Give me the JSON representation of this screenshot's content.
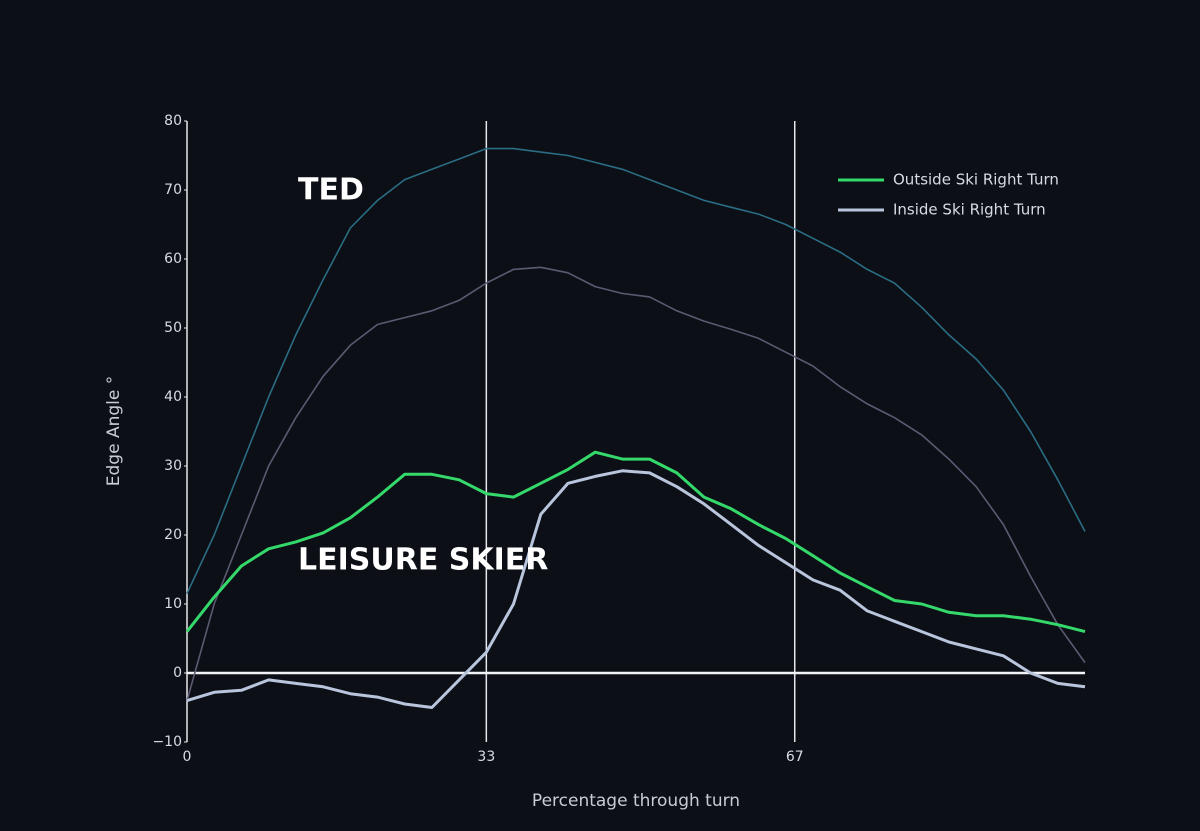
{
  "chart_data": {
    "type": "line",
    "x_label": "Percentage through turn",
    "y_label": "Edge Angle °",
    "annotations": [
      "TED",
      "LEISURE SKIER"
    ],
    "x": [
      0,
      3,
      6,
      9,
      12,
      15,
      18,
      21,
      24,
      27,
      30,
      33,
      36,
      39,
      42,
      45,
      48,
      51,
      54,
      57,
      60,
      63,
      66,
      69,
      72,
      75,
      78,
      81,
      84,
      87,
      90,
      93,
      96,
      99
    ],
    "xlim": [
      0,
      99
    ],
    "xticks": [
      0,
      33,
      67
    ],
    "ylim": [
      -10,
      80
    ],
    "yticks": [
      {
        "value": -10,
        "label": "−10"
      },
      0,
      10,
      20,
      30,
      40,
      50,
      60,
      70,
      80
    ],
    "grid": "x",
    "zeroline": true,
    "legend": "top-right",
    "series": [
      {
        "color": "#2a6d84",
        "values": [
          11.5,
          20,
          30,
          40,
          49,
          57,
          64.5,
          68.5,
          71.5,
          73,
          74.5,
          76,
          76,
          75.5,
          75,
          74,
          73,
          71.5,
          70,
          68.5,
          67.5,
          66.5,
          65,
          63,
          61,
          58.5,
          56.5,
          53,
          49,
          45.5,
          41,
          35,
          28,
          20.5
        ]
      },
      {
        "color": "#5b5a72",
        "values": [
          -4,
          10,
          20,
          30,
          37,
          43,
          47.5,
          50.5,
          51.5,
          52.5,
          54,
          56.5,
          58.5,
          58.8,
          58,
          56,
          55,
          54.5,
          52.5,
          51,
          49.8,
          48.5,
          46.5,
          44.5,
          41.5,
          39,
          37,
          34.5,
          31,
          27,
          21.5,
          14,
          7,
          1.5
        ]
      },
      {
        "name": "Outside Ski Right Turn",
        "color": "#35d86a",
        "values": [
          6,
          11,
          15.5,
          18,
          19,
          20.3,
          22.5,
          25.5,
          28.8,
          28.8,
          28,
          26,
          25.5,
          27.5,
          29.5,
          32,
          31,
          31,
          29,
          25.5,
          23.8,
          21.5,
          19.5,
          17,
          14.5,
          12.5,
          10.5,
          10,
          8.8,
          8.3,
          8.3,
          7.8,
          7,
          6
        ]
      },
      {
        "name": "Inside Ski Right Turn",
        "color": "#b9c5dd",
        "values": [
          -4,
          -2.8,
          -2.5,
          -1,
          -1.5,
          -2,
          -3,
          -3.5,
          -4.5,
          -5,
          -1,
          3,
          10,
          23,
          27.5,
          28.5,
          29.3,
          29,
          27,
          24.5,
          21.5,
          18.5,
          16,
          13.5,
          12,
          9,
          7.5,
          6,
          4.5,
          3.5,
          2.5,
          0,
          -1.5,
          -2
        ]
      }
    ]
  }
}
